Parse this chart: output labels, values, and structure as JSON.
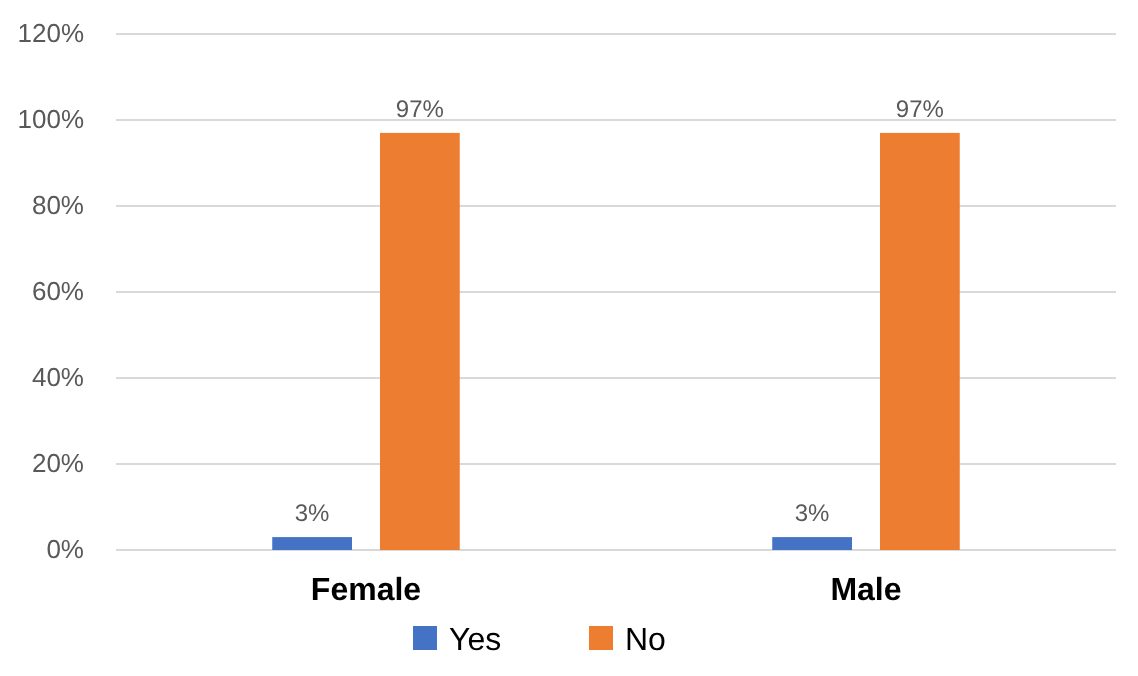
{
  "chart_data": {
    "type": "bar",
    "categories": [
      "Female",
      "Male"
    ],
    "series": [
      {
        "name": "Yes",
        "color": "#4472c4",
        "values": [
          3,
          3
        ],
        "value_labels": [
          "3%",
          "3%"
        ]
      },
      {
        "name": "No",
        "color": "#ed7d31",
        "values": [
          97,
          97
        ],
        "value_labels": [
          "97%",
          "97%"
        ]
      }
    ],
    "ylim": [
      0,
      120
    ],
    "yticks": [
      {
        "value": 0,
        "label": "0%"
      },
      {
        "value": 20,
        "label": "20%"
      },
      {
        "value": 40,
        "label": "40%"
      },
      {
        "value": 60,
        "label": "60%"
      },
      {
        "value": 80,
        "label": "80%"
      },
      {
        "value": 100,
        "label": "100%"
      },
      {
        "value": 120,
        "label": "120%"
      }
    ],
    "grid": "y",
    "legend": "bottom"
  }
}
